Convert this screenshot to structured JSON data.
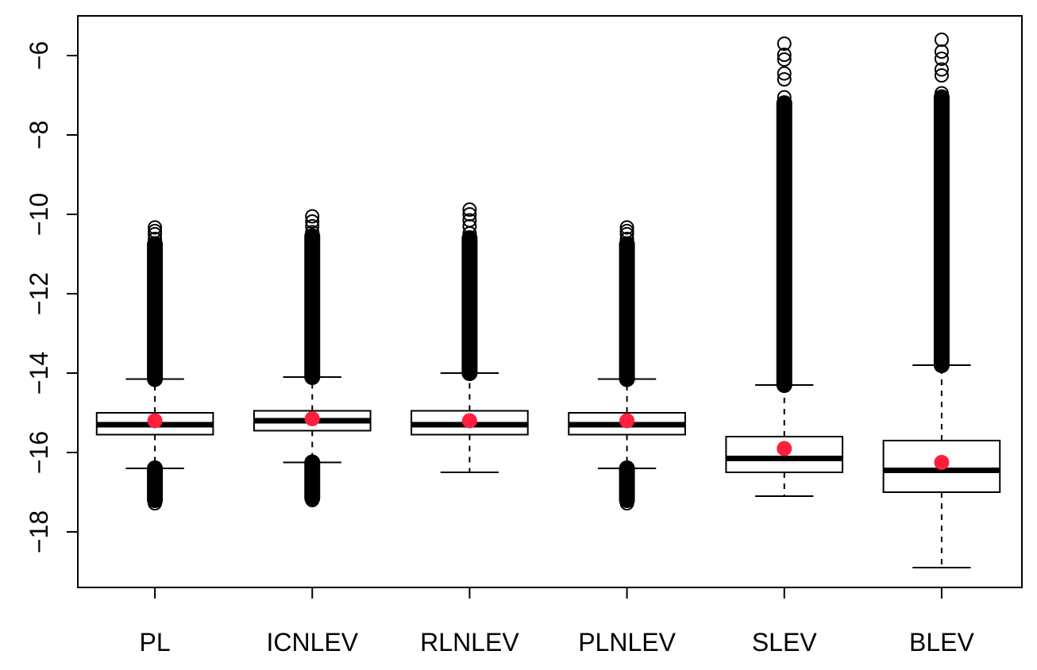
{
  "chart_data": {
    "type": "box",
    "title": "",
    "xlabel": "",
    "ylabel": "",
    "ylim": [
      -19.4,
      -5.2
    ],
    "yticks": [
      -18,
      -16,
      -14,
      -12,
      -10,
      -8,
      -6
    ],
    "ytick_labels": [
      "−18",
      "−16",
      "−14",
      "−12",
      "−10",
      "−8",
      "−6"
    ],
    "categories": [
      "PL",
      "ICNLEV",
      "RLNLEV",
      "PLNLEV",
      "SLEV",
      "BLEV"
    ],
    "boxes": [
      {
        "label": "PL",
        "whisker_low": -16.4,
        "q1": -15.55,
        "median": -15.3,
        "q3": -15.0,
        "whisker_high": -14.15,
        "mean": -15.2,
        "outliers_high_range": [
          -14.15,
          -10.75
        ],
        "outliers_high_sparse": [
          -10.62,
          -10.5,
          -10.42,
          -10.33
        ],
        "outliers_low_range": [
          -17.2,
          -16.4
        ],
        "outliers_low_sparse": [
          -17.28
        ]
      },
      {
        "label": "ICNLEV",
        "whisker_low": -16.25,
        "q1": -15.45,
        "median": -15.2,
        "q3": -14.95,
        "whisker_high": -14.1,
        "mean": -15.15,
        "outliers_high_range": [
          -14.1,
          -10.55
        ],
        "outliers_high_sparse": [
          -10.45,
          -10.3,
          -10.18,
          -10.05
        ],
        "outliers_low_range": [
          -17.15,
          -16.25
        ],
        "outliers_low_sparse": [
          -17.2
        ]
      },
      {
        "label": "RLNLEV",
        "whisker_low": -16.5,
        "q1": -15.55,
        "median": -15.3,
        "q3": -14.95,
        "whisker_high": -14.0,
        "mean": -15.2,
        "outliers_high_range": [
          -14.0,
          -10.6
        ],
        "outliers_high_sparse": [
          -10.48,
          -10.3,
          -10.15,
          -10.0,
          -9.88
        ],
        "outliers_low_range": [],
        "outliers_low_sparse": []
      },
      {
        "label": "PLNLEV",
        "whisker_low": -16.4,
        "q1": -15.55,
        "median": -15.3,
        "q3": -15.0,
        "whisker_high": -14.15,
        "mean": -15.2,
        "outliers_high_range": [
          -14.15,
          -10.75
        ],
        "outliers_high_sparse": [
          -10.62,
          -10.5,
          -10.42,
          -10.33
        ],
        "outliers_low_range": [
          -17.2,
          -16.4
        ],
        "outliers_low_sparse": [
          -17.28
        ]
      },
      {
        "label": "SLEV",
        "whisker_low": -17.1,
        "q1": -16.5,
        "median": -16.15,
        "q3": -15.6,
        "whisker_high": -14.3,
        "mean": -15.9,
        "outliers_high_range": [
          -14.3,
          -7.2
        ],
        "outliers_high_sparse": [
          -7.05,
          -6.6,
          -6.45,
          -6.1,
          -5.98,
          -5.7
        ],
        "outliers_low_range": [],
        "outliers_low_sparse": []
      },
      {
        "label": "BLEV",
        "whisker_low": -18.9,
        "q1": -17.0,
        "median": -16.45,
        "q3": -15.7,
        "whisker_high": -13.8,
        "mean": -16.25,
        "outliers_high_range": [
          -13.8,
          -7.05
        ],
        "outliers_high_sparse": [
          -6.95,
          -6.5,
          -6.35,
          -6.08,
          -5.9,
          -5.6
        ],
        "outliers_low_range": [],
        "outliers_low_sparse": []
      }
    ],
    "colors": {
      "box": "#000000",
      "mean": "#ff1f3d",
      "background": "#ffffff"
    },
    "grid": false,
    "legend": "none"
  }
}
